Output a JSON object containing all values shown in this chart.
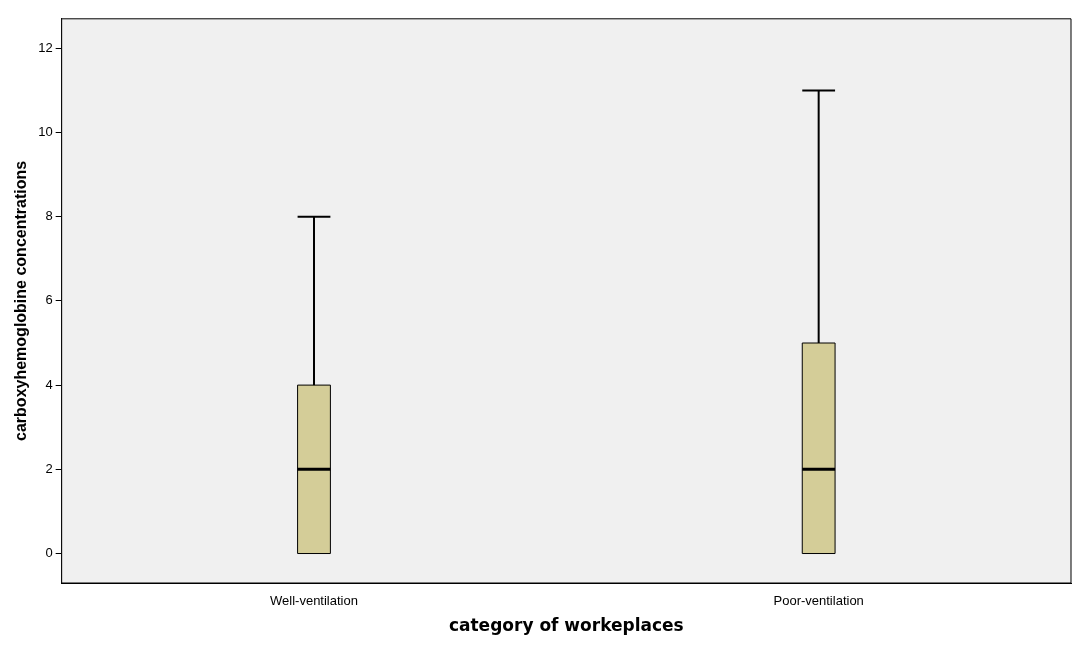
{
  "chart_data": {
    "type": "box",
    "xlabel": "category of workeplaces",
    "ylabel": "carboxyhemoglobine concentrations",
    "categories": [
      "Well-ventilation",
      "Poor-ventilation"
    ],
    "boxes": [
      {
        "low": 0,
        "q1": 0,
        "median": 2,
        "q3": 4,
        "high": 8
      },
      {
        "low": 0,
        "q1": 0,
        "median": 2,
        "q3": 5,
        "high": 11
      }
    ],
    "color": "#d4cd98",
    "ylim": [
      -0.7,
      12.7
    ],
    "yticks": [
      0,
      2,
      4,
      6,
      8,
      10,
      12
    ],
    "grid": false
  }
}
